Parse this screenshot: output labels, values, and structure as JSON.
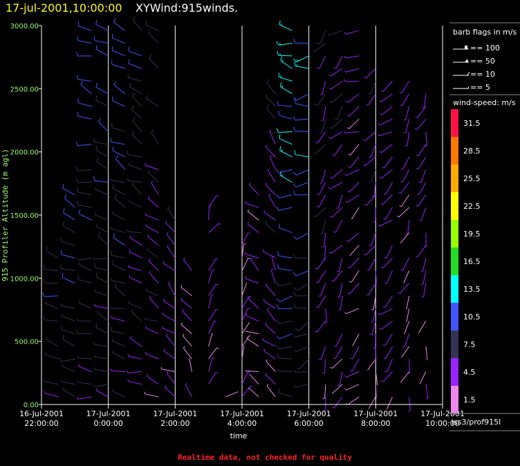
{
  "header": {
    "datetime": "17-jul-2001,10:00:00",
    "product": "XYWind:915winds."
  },
  "chart_data": {
    "type": "wind-barb",
    "xlabel": "time",
    "ylabel": "915 Profiler Altitude (m agl)",
    "ylim": [
      0,
      3000
    ],
    "yticks": [
      "0.00",
      "500.00",
      "1000.00",
      "1500.00",
      "2000.00",
      "2500.00",
      "3000.00"
    ],
    "xticks": [
      {
        "date": "16-Jul-2001",
        "time": "22:00:00"
      },
      {
        "date": "17-Jul-2001",
        "time": "0:00:00"
      },
      {
        "date": "17-Jul-2001",
        "time": "2:00:00"
      },
      {
        "date": "17-Jul-2001",
        "time": "4:00:00"
      },
      {
        "date": "17-Jul-2001",
        "time": "6:00:00"
      },
      {
        "date": "17-Jul-2001",
        "time": "8:00:00"
      },
      {
        "date": "17-Jul-2001",
        "time": "10:00:00"
      }
    ],
    "xlim_hours": [
      -2,
      10
    ],
    "profiles": [
      {
        "t": -1.5,
        "top": 1250,
        "dir": 290,
        "spd": 10
      },
      {
        "t": -1.0,
        "top": 1850,
        "dir": 285,
        "spd": 11
      },
      {
        "t": -0.5,
        "top": 3000,
        "dir": 275,
        "spd": 10
      },
      {
        "t": 0.0,
        "top": 3000,
        "dir": 285,
        "spd": 9
      },
      {
        "t": 0.5,
        "top": 3000,
        "dir": 290,
        "spd": 9
      },
      {
        "t": 1.0,
        "top": 3000,
        "dir": 290,
        "spd": 8
      },
      {
        "t": 1.5,
        "top": 3000,
        "dir": 300,
        "spd": 7
      },
      {
        "t": 2.0,
        "top": 1500,
        "dir": 310,
        "spd": 6
      },
      {
        "t": 2.5,
        "top": 1150,
        "dir": 330,
        "spd": 5
      },
      {
        "t": 3.0,
        "top": 1700,
        "dir": 20,
        "spd": 4
      },
      {
        "t": 3.5,
        "top": 250,
        "dir": 60,
        "spd": 3
      },
      {
        "t": 4.0,
        "top": 1300,
        "dir": 30,
        "spd": 4
      },
      {
        "t": 4.5,
        "top": 1700,
        "dir": 300,
        "spd": 4
      },
      {
        "t": 5.0,
        "top": 2500,
        "dir": 320,
        "spd": 6
      },
      {
        "t": 5.5,
        "top": 3000,
        "dir": 270,
        "spd": 12
      },
      {
        "t": 6.0,
        "top": 3000,
        "dir": 250,
        "spd": 11
      },
      {
        "t": 6.5,
        "top": 3000,
        "dir": 200,
        "spd": 6
      },
      {
        "t": 7.0,
        "top": 3000,
        "dir": 210,
        "spd": 5
      },
      {
        "t": 7.5,
        "top": 3000,
        "dir": 230,
        "spd": 4
      },
      {
        "t": 8.0,
        "top": 2750,
        "dir": 200,
        "spd": 5
      },
      {
        "t": 8.5,
        "top": 2650,
        "dir": 220,
        "spd": 5
      },
      {
        "t": 9.0,
        "top": 2600,
        "dir": 200,
        "spd": 4
      },
      {
        "t": 9.5,
        "top": 2600,
        "dir": 190,
        "spd": 4
      }
    ]
  },
  "legend": {
    "barb_title": "barb flags in m/s",
    "barb_items": [
      {
        "value": 100,
        "label": "== 100"
      },
      {
        "value": 50,
        "label": "== 50"
      },
      {
        "value": 10,
        "label": "== 10"
      },
      {
        "value": 5,
        "label": "== 5"
      }
    ],
    "colorbar_title": "wind-speed: m/s",
    "colorbar": [
      {
        "label": "31.5",
        "color": "#ff1144"
      },
      {
        "label": "28.5",
        "color": "#ff7700"
      },
      {
        "label": "25.5",
        "color": "#ffaa00"
      },
      {
        "label": "22.5",
        "color": "#ffff00"
      },
      {
        "label": "19.5",
        "color": "#99ff00"
      },
      {
        "label": "16.5",
        "color": "#22dd22"
      },
      {
        "label": "13.5",
        "color": "#00ffff"
      },
      {
        "label": "10.5",
        "color": "#4455ff"
      },
      {
        "label": "7.5",
        "color": "#333355"
      },
      {
        "label": "4.5",
        "color": "#9922ff"
      },
      {
        "label": "1.5",
        "color": "#ee88ee"
      }
    ],
    "station": "iss3/prof915l"
  },
  "footer": {
    "warning": "Realtime data, not checked for quality"
  }
}
